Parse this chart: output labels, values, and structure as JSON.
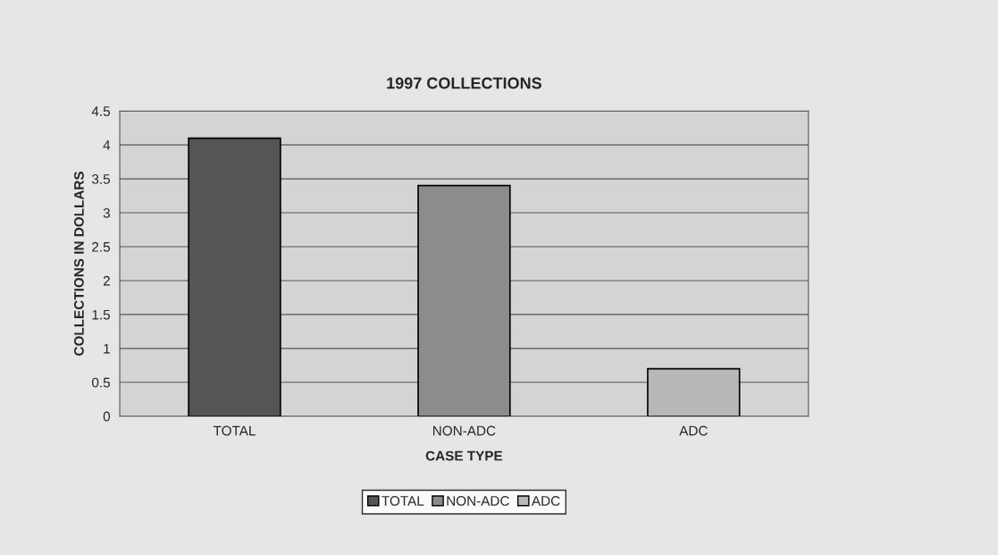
{
  "chart_data": {
    "type": "bar",
    "title": "1997 COLLECTIONS",
    "xlabel": "CASE TYPE",
    "ylabel": "COLLECTIONS IN DOLLARS",
    "categories": [
      "TOTAL",
      "NON-ADC",
      "ADC"
    ],
    "series": [
      {
        "name": "TOTAL",
        "color": "#555555",
        "values": [
          4.1,
          null,
          null
        ]
      },
      {
        "name": "NON-ADC",
        "color": "#8c8c8c",
        "values": [
          null,
          3.4,
          null
        ]
      },
      {
        "name": "ADC",
        "color": "#b8b8b8",
        "values": [
          null,
          null,
          0.7
        ]
      }
    ],
    "ylim": [
      0,
      4.5
    ],
    "yticks": [
      0,
      0.5,
      1,
      1.5,
      2,
      2.5,
      3,
      3.5,
      4,
      4.5
    ],
    "grid": "y",
    "legend": "bottom"
  }
}
